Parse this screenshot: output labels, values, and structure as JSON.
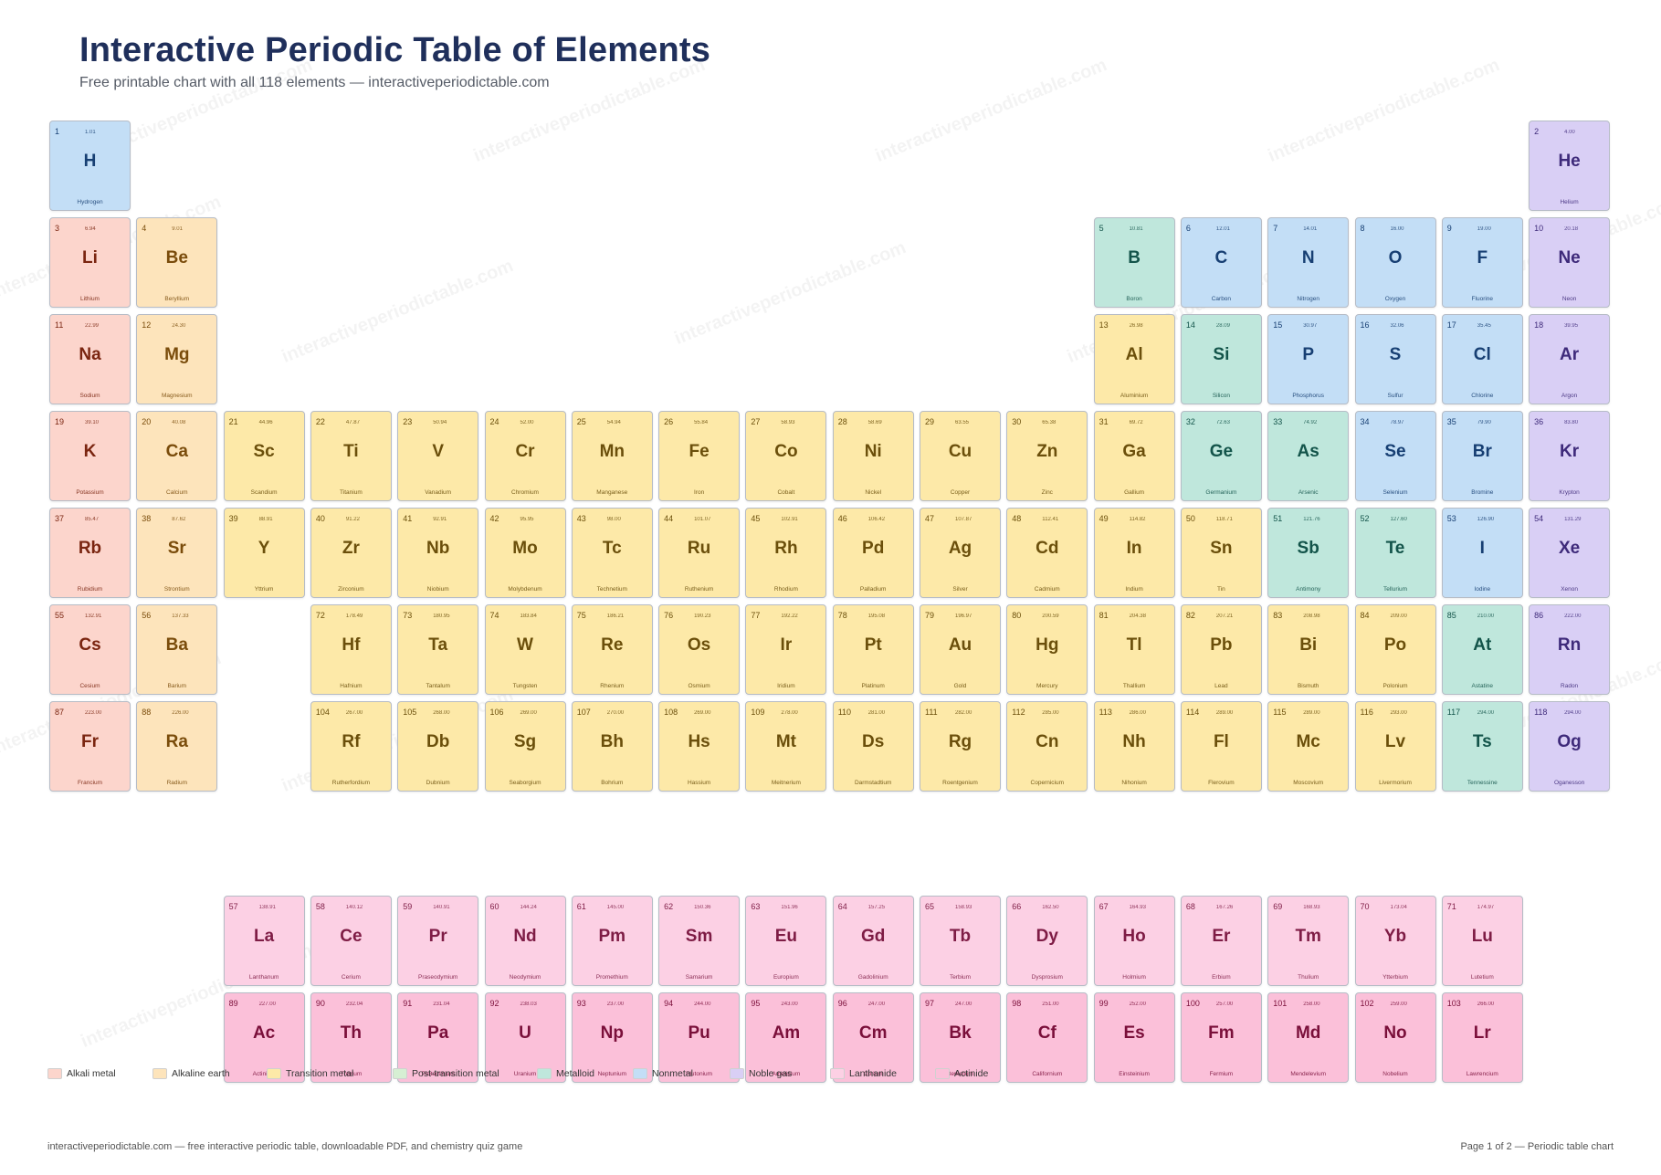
{
  "header": {
    "title": "Interactive Periodic Table of Elements",
    "subtitle": "Free printable chart with all 118 elements — interactiveperiodictable.com"
  },
  "watermark_text": "interactiveperiodictable.com",
  "categories": {
    "alkali": {
      "label": "Alkali metal",
      "bg": "#fcd5cc",
      "fg": "#7a2510"
    },
    "alkaline": {
      "label": "Alkaline earth",
      "bg": "#fde4bb",
      "fg": "#7a4c0b"
    },
    "transition": {
      "label": "Transition metal",
      "bg": "#fde9a8",
      "fg": "#6b4f0b"
    },
    "post": {
      "label": "Post-transition metal",
      "bg": "#d6efd3",
      "fg": "#2d5a28"
    },
    "metalloid": {
      "label": "Metalloid",
      "bg": "#bfe7dc",
      "fg": "#13544a"
    },
    "nonmetal": {
      "label": "Nonmetal",
      "bg": "#c3def6",
      "fg": "#173f73"
    },
    "noble": {
      "label": "Noble gas",
      "bg": "#d9cff5",
      "fg": "#3e2a7a"
    },
    "lanthanide": {
      "label": "Lanthanide",
      "bg": "#fcd0e4",
      "fg": "#7e1c45"
    },
    "actinide": {
      "label": "Actinide",
      "bg": "#fbc0d9",
      "fg": "#7a0f3a"
    }
  },
  "legend_order": [
    "alkali",
    "alkaline",
    "transition",
    "post",
    "metalloid",
    "nonmetal",
    "noble",
    "lanthanide",
    "actinide"
  ],
  "elements": [
    {
      "n": 1,
      "s": "H",
      "name": "Hydrogen",
      "m": "1.01",
      "c": "nonmetal",
      "g": 1,
      "p": 1
    },
    {
      "n": 2,
      "s": "He",
      "name": "Helium",
      "m": "4.00",
      "c": "noble",
      "g": 18,
      "p": 1
    },
    {
      "n": 3,
      "s": "Li",
      "name": "Lithium",
      "m": "6.94",
      "c": "alkali",
      "g": 1,
      "p": 2
    },
    {
      "n": 4,
      "s": "Be",
      "name": "Beryllium",
      "m": "9.01",
      "c": "alkaline",
      "g": 2,
      "p": 2
    },
    {
      "n": 5,
      "s": "B",
      "name": "Boron",
      "m": "10.81",
      "c": "metalloid",
      "g": 13,
      "p": 2
    },
    {
      "n": 6,
      "s": "C",
      "name": "Carbon",
      "m": "12.01",
      "c": "nonmetal",
      "g": 14,
      "p": 2
    },
    {
      "n": 7,
      "s": "N",
      "name": "Nitrogen",
      "m": "14.01",
      "c": "nonmetal",
      "g": 15,
      "p": 2
    },
    {
      "n": 8,
      "s": "O",
      "name": "Oxygen",
      "m": "16.00",
      "c": "nonmetal",
      "g": 16,
      "p": 2
    },
    {
      "n": 9,
      "s": "F",
      "name": "Fluorine",
      "m": "19.00",
      "c": "nonmetal",
      "g": 17,
      "p": 2
    },
    {
      "n": 10,
      "s": "Ne",
      "name": "Neon",
      "m": "20.18",
      "c": "noble",
      "g": 18,
      "p": 2
    },
    {
      "n": 11,
      "s": "Na",
      "name": "Sodium",
      "m": "22.99",
      "c": "alkali",
      "g": 1,
      "p": 3
    },
    {
      "n": 12,
      "s": "Mg",
      "name": "Magnesium",
      "m": "24.30",
      "c": "alkaline",
      "g": 2,
      "p": 3
    },
    {
      "n": 13,
      "s": "Al",
      "name": "Aluminium",
      "m": "26.98",
      "c": "transition",
      "g": 13,
      "p": 3
    },
    {
      "n": 14,
      "s": "Si",
      "name": "Silicon",
      "m": "28.09",
      "c": "metalloid",
      "g": 14,
      "p": 3
    },
    {
      "n": 15,
      "s": "P",
      "name": "Phosphorus",
      "m": "30.97",
      "c": "nonmetal",
      "g": 15,
      "p": 3
    },
    {
      "n": 16,
      "s": "S",
      "name": "Sulfur",
      "m": "32.06",
      "c": "nonmetal",
      "g": 16,
      "p": 3
    },
    {
      "n": 17,
      "s": "Cl",
      "name": "Chlorine",
      "m": "35.45",
      "c": "nonmetal",
      "g": 17,
      "p": 3
    },
    {
      "n": 18,
      "s": "Ar",
      "name": "Argon",
      "m": "39.95",
      "c": "noble",
      "g": 18,
      "p": 3
    },
    {
      "n": 19,
      "s": "K",
      "name": "Potassium",
      "m": "39.10",
      "c": "alkali",
      "g": 1,
      "p": 4
    },
    {
      "n": 20,
      "s": "Ca",
      "name": "Calcium",
      "m": "40.08",
      "c": "alkaline",
      "g": 2,
      "p": 4
    },
    {
      "n": 21,
      "s": "Sc",
      "name": "Scandium",
      "m": "44.96",
      "c": "transition",
      "g": 3,
      "p": 4
    },
    {
      "n": 22,
      "s": "Ti",
      "name": "Titanium",
      "m": "47.87",
      "c": "transition",
      "g": 4,
      "p": 4
    },
    {
      "n": 23,
      "s": "V",
      "name": "Vanadium",
      "m": "50.94",
      "c": "transition",
      "g": 5,
      "p": 4
    },
    {
      "n": 24,
      "s": "Cr",
      "name": "Chromium",
      "m": "52.00",
      "c": "transition",
      "g": 6,
      "p": 4
    },
    {
      "n": 25,
      "s": "Mn",
      "name": "Manganese",
      "m": "54.94",
      "c": "transition",
      "g": 7,
      "p": 4
    },
    {
      "n": 26,
      "s": "Fe",
      "name": "Iron",
      "m": "55.84",
      "c": "transition",
      "g": 8,
      "p": 4
    },
    {
      "n": 27,
      "s": "Co",
      "name": "Cobalt",
      "m": "58.93",
      "c": "transition",
      "g": 9,
      "p": 4
    },
    {
      "n": 28,
      "s": "Ni",
      "name": "Nickel",
      "m": "58.69",
      "c": "transition",
      "g": 10,
      "p": 4
    },
    {
      "n": 29,
      "s": "Cu",
      "name": "Copper",
      "m": "63.55",
      "c": "transition",
      "g": 11,
      "p": 4
    },
    {
      "n": 30,
      "s": "Zn",
      "name": "Zinc",
      "m": "65.38",
      "c": "transition",
      "g": 12,
      "p": 4
    },
    {
      "n": 31,
      "s": "Ga",
      "name": "Gallium",
      "m": "69.72",
      "c": "transition",
      "g": 13,
      "p": 4
    },
    {
      "n": 32,
      "s": "Ge",
      "name": "Germanium",
      "m": "72.63",
      "c": "metalloid",
      "g": 14,
      "p": 4
    },
    {
      "n": 33,
      "s": "As",
      "name": "Arsenic",
      "m": "74.92",
      "c": "metalloid",
      "g": 15,
      "p": 4
    },
    {
      "n": 34,
      "s": "Se",
      "name": "Selenium",
      "m": "78.97",
      "c": "nonmetal",
      "g": 16,
      "p": 4
    },
    {
      "n": 35,
      "s": "Br",
      "name": "Bromine",
      "m": "79.90",
      "c": "nonmetal",
      "g": 17,
      "p": 4
    },
    {
      "n": 36,
      "s": "Kr",
      "name": "Krypton",
      "m": "83.80",
      "c": "noble",
      "g": 18,
      "p": 4
    },
    {
      "n": 37,
      "s": "Rb",
      "name": "Rubidium",
      "m": "85.47",
      "c": "alkali",
      "g": 1,
      "p": 5
    },
    {
      "n": 38,
      "s": "Sr",
      "name": "Strontium",
      "m": "87.62",
      "c": "alkaline",
      "g": 2,
      "p": 5
    },
    {
      "n": 39,
      "s": "Y",
      "name": "Yttrium",
      "m": "88.91",
      "c": "transition",
      "g": 3,
      "p": 5
    },
    {
      "n": 40,
      "s": "Zr",
      "name": "Zirconium",
      "m": "91.22",
      "c": "transition",
      "g": 4,
      "p": 5
    },
    {
      "n": 41,
      "s": "Nb",
      "name": "Niobium",
      "m": "92.91",
      "c": "transition",
      "g": 5,
      "p": 5
    },
    {
      "n": 42,
      "s": "Mo",
      "name": "Molybdenum",
      "m": "95.95",
      "c": "transition",
      "g": 6,
      "p": 5
    },
    {
      "n": 43,
      "s": "Tc",
      "name": "Technetium",
      "m": "98.00",
      "c": "transition",
      "g": 7,
      "p": 5
    },
    {
      "n": 44,
      "s": "Ru",
      "name": "Ruthenium",
      "m": "101.07",
      "c": "transition",
      "g": 8,
      "p": 5
    },
    {
      "n": 45,
      "s": "Rh",
      "name": "Rhodium",
      "m": "102.91",
      "c": "transition",
      "g": 9,
      "p": 5
    },
    {
      "n": 46,
      "s": "Pd",
      "name": "Palladium",
      "m": "106.42",
      "c": "transition",
      "g": 10,
      "p": 5
    },
    {
      "n": 47,
      "s": "Ag",
      "name": "Silver",
      "m": "107.87",
      "c": "transition",
      "g": 11,
      "p": 5
    },
    {
      "n": 48,
      "s": "Cd",
      "name": "Cadmium",
      "m": "112.41",
      "c": "transition",
      "g": 12,
      "p": 5
    },
    {
      "n": 49,
      "s": "In",
      "name": "Indium",
      "m": "114.82",
      "c": "transition",
      "g": 13,
      "p": 5
    },
    {
      "n": 50,
      "s": "Sn",
      "name": "Tin",
      "m": "118.71",
      "c": "transition",
      "g": 14,
      "p": 5
    },
    {
      "n": 51,
      "s": "Sb",
      "name": "Antimony",
      "m": "121.76",
      "c": "metalloid",
      "g": 15,
      "p": 5
    },
    {
      "n": 52,
      "s": "Te",
      "name": "Tellurium",
      "m": "127.60",
      "c": "metalloid",
      "g": 16,
      "p": 5
    },
    {
      "n": 53,
      "s": "I",
      "name": "Iodine",
      "m": "126.90",
      "c": "nonmetal",
      "g": 17,
      "p": 5
    },
    {
      "n": 54,
      "s": "Xe",
      "name": "Xenon",
      "m": "131.29",
      "c": "noble",
      "g": 18,
      "p": 5
    },
    {
      "n": 55,
      "s": "Cs",
      "name": "Cesium",
      "m": "132.91",
      "c": "alkali",
      "g": 1,
      "p": 6
    },
    {
      "n": 56,
      "s": "Ba",
      "name": "Barium",
      "m": "137.33",
      "c": "alkaline",
      "g": 2,
      "p": 6
    },
    {
      "n": 72,
      "s": "Hf",
      "name": "Hafnium",
      "m": "178.49",
      "c": "transition",
      "g": 4,
      "p": 6
    },
    {
      "n": 73,
      "s": "Ta",
      "name": "Tantalum",
      "m": "180.95",
      "c": "transition",
      "g": 5,
      "p": 6
    },
    {
      "n": 74,
      "s": "W",
      "name": "Tungsten",
      "m": "183.84",
      "c": "transition",
      "g": 6,
      "p": 6
    },
    {
      "n": 75,
      "s": "Re",
      "name": "Rhenium",
      "m": "186.21",
      "c": "transition",
      "g": 7,
      "p": 6
    },
    {
      "n": 76,
      "s": "Os",
      "name": "Osmium",
      "m": "190.23",
      "c": "transition",
      "g": 8,
      "p": 6
    },
    {
      "n": 77,
      "s": "Ir",
      "name": "Iridium",
      "m": "192.22",
      "c": "transition",
      "g": 9,
      "p": 6
    },
    {
      "n": 78,
      "s": "Pt",
      "name": "Platinum",
      "m": "195.08",
      "c": "transition",
      "g": 10,
      "p": 6
    },
    {
      "n": 79,
      "s": "Au",
      "name": "Gold",
      "m": "196.97",
      "c": "transition",
      "g": 11,
      "p": 6
    },
    {
      "n": 80,
      "s": "Hg",
      "name": "Mercury",
      "m": "200.59",
      "c": "transition",
      "g": 12,
      "p": 6
    },
    {
      "n": 81,
      "s": "Tl",
      "name": "Thallium",
      "m": "204.38",
      "c": "transition",
      "g": 13,
      "p": 6
    },
    {
      "n": 82,
      "s": "Pb",
      "name": "Lead",
      "m": "207.21",
      "c": "transition",
      "g": 14,
      "p": 6
    },
    {
      "n": 83,
      "s": "Bi",
      "name": "Bismuth",
      "m": "208.98",
      "c": "transition",
      "g": 15,
      "p": 6
    },
    {
      "n": 84,
      "s": "Po",
      "name": "Polonium",
      "m": "209.00",
      "c": "transition",
      "g": 16,
      "p": 6
    },
    {
      "n": 85,
      "s": "At",
      "name": "Astatine",
      "m": "210.00",
      "c": "metalloid",
      "g": 17,
      "p": 6
    },
    {
      "n": 86,
      "s": "Rn",
      "name": "Radon",
      "m": "222.00",
      "c": "noble",
      "g": 18,
      "p": 6
    },
    {
      "n": 87,
      "s": "Fr",
      "name": "Francium",
      "m": "223.00",
      "c": "alkali",
      "g": 1,
      "p": 7
    },
    {
      "n": 88,
      "s": "Ra",
      "name": "Radium",
      "m": "226.00",
      "c": "alkaline",
      "g": 2,
      "p": 7
    },
    {
      "n": 104,
      "s": "Rf",
      "name": "Rutherfordium",
      "m": "267.00",
      "c": "transition",
      "g": 4,
      "p": 7
    },
    {
      "n": 105,
      "s": "Db",
      "name": "Dubnium",
      "m": "268.00",
      "c": "transition",
      "g": 5,
      "p": 7
    },
    {
      "n": 106,
      "s": "Sg",
      "name": "Seaborgium",
      "m": "269.00",
      "c": "transition",
      "g": 6,
      "p": 7
    },
    {
      "n": 107,
      "s": "Bh",
      "name": "Bohrium",
      "m": "270.00",
      "c": "transition",
      "g": 7,
      "p": 7
    },
    {
      "n": 108,
      "s": "Hs",
      "name": "Hassium",
      "m": "269.00",
      "c": "transition",
      "g": 8,
      "p": 7
    },
    {
      "n": 109,
      "s": "Mt",
      "name": "Meitnerium",
      "m": "278.00",
      "c": "transition",
      "g": 9,
      "p": 7
    },
    {
      "n": 110,
      "s": "Ds",
      "name": "Darmstadtium",
      "m": "281.00",
      "c": "transition",
      "g": 10,
      "p": 7
    },
    {
      "n": 111,
      "s": "Rg",
      "name": "Roentgenium",
      "m": "282.00",
      "c": "transition",
      "g": 11,
      "p": 7
    },
    {
      "n": 112,
      "s": "Cn",
      "name": "Copernicium",
      "m": "285.00",
      "c": "transition",
      "g": 12,
      "p": 7
    },
    {
      "n": 113,
      "s": "Nh",
      "name": "Nihonium",
      "m": "286.00",
      "c": "transition",
      "g": 13,
      "p": 7
    },
    {
      "n": 114,
      "s": "Fl",
      "name": "Flerovium",
      "m": "289.00",
      "c": "transition",
      "g": 14,
      "p": 7
    },
    {
      "n": 115,
      "s": "Mc",
      "name": "Moscovium",
      "m": "289.00",
      "c": "transition",
      "g": 15,
      "p": 7
    },
    {
      "n": 116,
      "s": "Lv",
      "name": "Livermorium",
      "m": "293.00",
      "c": "transition",
      "g": 16,
      "p": 7
    },
    {
      "n": 117,
      "s": "Ts",
      "name": "Tennessine",
      "m": "294.00",
      "c": "metalloid",
      "g": 17,
      "p": 7
    },
    {
      "n": 118,
      "s": "Og",
      "name": "Oganesson",
      "m": "294.00",
      "c": "noble",
      "g": 18,
      "p": 7
    },
    {
      "n": 57,
      "s": "La",
      "name": "Lanthanum",
      "m": "138.91",
      "c": "lanthanide",
      "g": 3,
      "p": 9
    },
    {
      "n": 58,
      "s": "Ce",
      "name": "Cerium",
      "m": "140.12",
      "c": "lanthanide",
      "g": 4,
      "p": 9
    },
    {
      "n": 59,
      "s": "Pr",
      "name": "Praseodymium",
      "m": "140.91",
      "c": "lanthanide",
      "g": 5,
      "p": 9
    },
    {
      "n": 60,
      "s": "Nd",
      "name": "Neodymium",
      "m": "144.24",
      "c": "lanthanide",
      "g": 6,
      "p": 9
    },
    {
      "n": 61,
      "s": "Pm",
      "name": "Promethium",
      "m": "145.00",
      "c": "lanthanide",
      "g": 7,
      "p": 9
    },
    {
      "n": 62,
      "s": "Sm",
      "name": "Samarium",
      "m": "150.36",
      "c": "lanthanide",
      "g": 8,
      "p": 9
    },
    {
      "n": 63,
      "s": "Eu",
      "name": "Europium",
      "m": "151.96",
      "c": "lanthanide",
      "g": 9,
      "p": 9
    },
    {
      "n": 64,
      "s": "Gd",
      "name": "Gadolinium",
      "m": "157.25",
      "c": "lanthanide",
      "g": 10,
      "p": 9
    },
    {
      "n": 65,
      "s": "Tb",
      "name": "Terbium",
      "m": "158.93",
      "c": "lanthanide",
      "g": 11,
      "p": 9
    },
    {
      "n": 66,
      "s": "Dy",
      "name": "Dysprosium",
      "m": "162.50",
      "c": "lanthanide",
      "g": 12,
      "p": 9
    },
    {
      "n": 67,
      "s": "Ho",
      "name": "Holmium",
      "m": "164.93",
      "c": "lanthanide",
      "g": 13,
      "p": 9
    },
    {
      "n": 68,
      "s": "Er",
      "name": "Erbium",
      "m": "167.26",
      "c": "lanthanide",
      "g": 14,
      "p": 9
    },
    {
      "n": 69,
      "s": "Tm",
      "name": "Thulium",
      "m": "168.93",
      "c": "lanthanide",
      "g": 15,
      "p": 9
    },
    {
      "n": 70,
      "s": "Yb",
      "name": "Ytterbium",
      "m": "173.04",
      "c": "lanthanide",
      "g": 16,
      "p": 9
    },
    {
      "n": 71,
      "s": "Lu",
      "name": "Lutetium",
      "m": "174.97",
      "c": "lanthanide",
      "g": 17,
      "p": 9
    },
    {
      "n": 89,
      "s": "Ac",
      "name": "Actinium",
      "m": "227.00",
      "c": "actinide",
      "g": 3,
      "p": 10
    },
    {
      "n": 90,
      "s": "Th",
      "name": "Thorium",
      "m": "232.04",
      "c": "actinide",
      "g": 4,
      "p": 10
    },
    {
      "n": 91,
      "s": "Pa",
      "name": "Protactinium",
      "m": "231.04",
      "c": "actinide",
      "g": 5,
      "p": 10
    },
    {
      "n": 92,
      "s": "U",
      "name": "Uranium",
      "m": "238.03",
      "c": "actinide",
      "g": 6,
      "p": 10
    },
    {
      "n": 93,
      "s": "Np",
      "name": "Neptunium",
      "m": "237.00",
      "c": "actinide",
      "g": 7,
      "p": 10
    },
    {
      "n": 94,
      "s": "Pu",
      "name": "Plutonium",
      "m": "244.00",
      "c": "actinide",
      "g": 8,
      "p": 10
    },
    {
      "n": 95,
      "s": "Am",
      "name": "Americium",
      "m": "243.00",
      "c": "actinide",
      "g": 9,
      "p": 10
    },
    {
      "n": 96,
      "s": "Cm",
      "name": "Curium",
      "m": "247.00",
      "c": "actinide",
      "g": 10,
      "p": 10
    },
    {
      "n": 97,
      "s": "Bk",
      "name": "Berkelium",
      "m": "247.00",
      "c": "actinide",
      "g": 11,
      "p": 10
    },
    {
      "n": 98,
      "s": "Cf",
      "name": "Californium",
      "m": "251.00",
      "c": "actinide",
      "g": 12,
      "p": 10
    },
    {
      "n": 99,
      "s": "Es",
      "name": "Einsteinium",
      "m": "252.00",
      "c": "actinide",
      "g": 13,
      "p": 10
    },
    {
      "n": 100,
      "s": "Fm",
      "name": "Fermium",
      "m": "257.00",
      "c": "actinide",
      "g": 14,
      "p": 10
    },
    {
      "n": 101,
      "s": "Md",
      "name": "Mendelevium",
      "m": "258.00",
      "c": "actinide",
      "g": 15,
      "p": 10
    },
    {
      "n": 102,
      "s": "No",
      "name": "Nobelium",
      "m": "259.00",
      "c": "actinide",
      "g": 16,
      "p": 10
    },
    {
      "n": 103,
      "s": "Lr",
      "name": "Lawrencium",
      "m": "266.00",
      "c": "actinide",
      "g": 17,
      "p": 10
    }
  ],
  "footer": {
    "left": "interactiveperiodictable.com — free interactive periodic table, downloadable PDF, and chemistry quiz game",
    "right": "Page 1 of 2 — Periodic table chart"
  }
}
